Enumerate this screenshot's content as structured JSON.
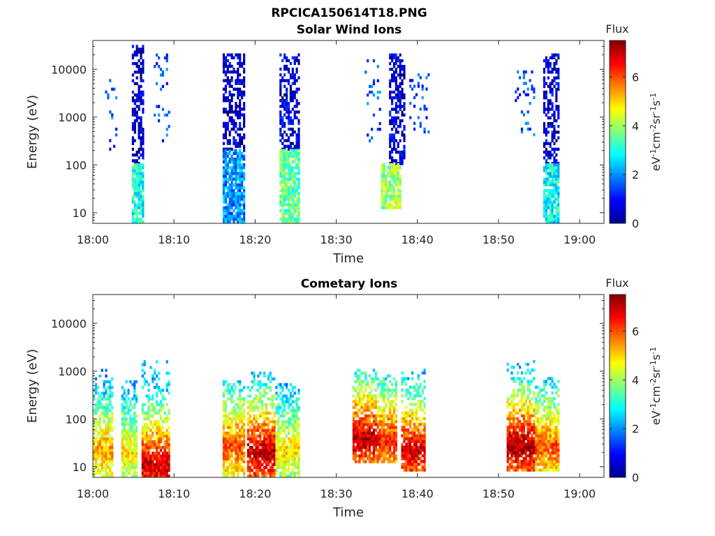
{
  "figure_title": "RPCICA150614T18.PNG",
  "chart_data": [
    {
      "type": "heatmap",
      "title": "Solar Wind Ions",
      "xlabel": "Time",
      "ylabel": "Energy (eV)",
      "x_ticks": [
        "18:00",
        "18:10",
        "18:20",
        "18:30",
        "18:40",
        "18:50",
        "19:00"
      ],
      "x_range_minutes": [
        0,
        63
      ],
      "y_scale": "log",
      "y_ticks": [
        "10",
        "100",
        "1000",
        "10000"
      ],
      "y_range": [
        6,
        40000
      ],
      "colorbar": {
        "title": "Flux",
        "label": "eV-1cm-2sr-1s-1",
        "ticks": [
          "0",
          "2",
          "4",
          "6"
        ],
        "range": [
          0,
          7.5
        ],
        "colormap": "jet"
      },
      "bursts": [
        {
          "t_start": 1.5,
          "t_end": 3.0,
          "e_low": 200,
          "e_high": 9000,
          "flux": 1.5,
          "kind": "sparse"
        },
        {
          "t_start": 4.8,
          "t_end": 6.2,
          "e_low": 100,
          "e_high": 30000,
          "flux": 0.5,
          "kind": "column"
        },
        {
          "t_start": 4.8,
          "t_end": 6.2,
          "e_low": 6,
          "e_high": 100,
          "flux": 3.0,
          "kind": "column-low"
        },
        {
          "t_start": 7.5,
          "t_end": 9.5,
          "e_low": 300,
          "e_high": 20000,
          "flux": 1.5,
          "kind": "sparse"
        },
        {
          "t_start": 16.0,
          "t_end": 18.7,
          "e_low": 200,
          "e_high": 20000,
          "flux": 0.5,
          "kind": "column"
        },
        {
          "t_start": 16.0,
          "t_end": 18.7,
          "e_low": 6,
          "e_high": 200,
          "flux": 2.0,
          "kind": "column-low"
        },
        {
          "t_start": 23.0,
          "t_end": 25.5,
          "e_low": 200,
          "e_high": 20000,
          "flux": 0.6,
          "kind": "column"
        },
        {
          "t_start": 23.0,
          "t_end": 25.5,
          "e_low": 6,
          "e_high": 200,
          "flux": 3.5,
          "kind": "column-low"
        },
        {
          "t_start": 33.5,
          "t_end": 35.5,
          "e_low": 300,
          "e_high": 15000,
          "flux": 1.5,
          "kind": "sparse"
        },
        {
          "t_start": 36.5,
          "t_end": 38.5,
          "e_low": 100,
          "e_high": 20000,
          "flux": 0.6,
          "kind": "column"
        },
        {
          "t_start": 35.5,
          "t_end": 38.0,
          "e_low": 12,
          "e_high": 100,
          "flux": 4.0,
          "kind": "column-low"
        },
        {
          "t_start": 39.0,
          "t_end": 41.5,
          "e_low": 400,
          "e_high": 8000,
          "flux": 1.5,
          "kind": "sparse"
        },
        {
          "t_start": 52.0,
          "t_end": 54.5,
          "e_low": 400,
          "e_high": 9000,
          "flux": 1.5,
          "kind": "sparse"
        },
        {
          "t_start": 55.5,
          "t_end": 57.5,
          "e_low": 100,
          "e_high": 20000,
          "flux": 0.6,
          "kind": "column"
        },
        {
          "t_start": 55.5,
          "t_end": 57.5,
          "e_low": 6,
          "e_high": 100,
          "flux": 2.8,
          "kind": "column-low"
        }
      ]
    },
    {
      "type": "heatmap",
      "title": "Cometary Ions",
      "xlabel": "Time",
      "ylabel": "Energy (eV)",
      "x_ticks": [
        "18:00",
        "18:10",
        "18:20",
        "18:30",
        "18:40",
        "18:50",
        "19:00"
      ],
      "x_range_minutes": [
        0,
        63
      ],
      "y_scale": "log",
      "y_ticks": [
        "10",
        "100",
        "1000",
        "10000"
      ],
      "y_range": [
        6,
        40000
      ],
      "colorbar": {
        "title": "Flux",
        "label": "eV-1cm-2sr-1s-1",
        "ticks": [
          "0",
          "2",
          "4",
          "6"
        ],
        "range": [
          0,
          7.5
        ],
        "colormap": "jet"
      },
      "bursts": [
        {
          "t_start": 0.0,
          "t_end": 2.5,
          "e_low": 6,
          "e_high": 1000,
          "peak_flux": 5.5,
          "peak_energy": 20
        },
        {
          "t_start": 3.5,
          "t_end": 5.5,
          "e_low": 6,
          "e_high": 600,
          "peak_flux": 5.0,
          "peak_energy": 18
        },
        {
          "t_start": 6.0,
          "t_end": 9.5,
          "e_low": 6,
          "e_high": 1600,
          "peak_flux": 7.0,
          "peak_energy": 10
        },
        {
          "t_start": 16.0,
          "t_end": 18.7,
          "e_low": 6,
          "e_high": 600,
          "peak_flux": 6.0,
          "peak_energy": 25
        },
        {
          "t_start": 19.0,
          "t_end": 22.5,
          "e_low": 6,
          "e_high": 1000,
          "peak_flux": 7.2,
          "peak_energy": 18
        },
        {
          "t_start": 22.5,
          "t_end": 25.5,
          "e_low": 6,
          "e_high": 500,
          "peak_flux": 5.0,
          "peak_energy": 20
        },
        {
          "t_start": 32.0,
          "t_end": 35.0,
          "e_low": 12,
          "e_high": 1000,
          "peak_flux": 7.2,
          "peak_energy": 35
        },
        {
          "t_start": 35.0,
          "t_end": 37.5,
          "e_low": 12,
          "e_high": 800,
          "peak_flux": 6.5,
          "peak_energy": 30
        },
        {
          "t_start": 38.0,
          "t_end": 41.0,
          "e_low": 8,
          "e_high": 1000,
          "peak_flux": 7.0,
          "peak_energy": 20
        },
        {
          "t_start": 51.0,
          "t_end": 54.5,
          "e_low": 8,
          "e_high": 1500,
          "peak_flux": 7.3,
          "peak_energy": 25
        },
        {
          "t_start": 54.5,
          "t_end": 57.5,
          "e_low": 8,
          "e_high": 700,
          "peak_flux": 6.0,
          "peak_energy": 25
        }
      ]
    }
  ]
}
